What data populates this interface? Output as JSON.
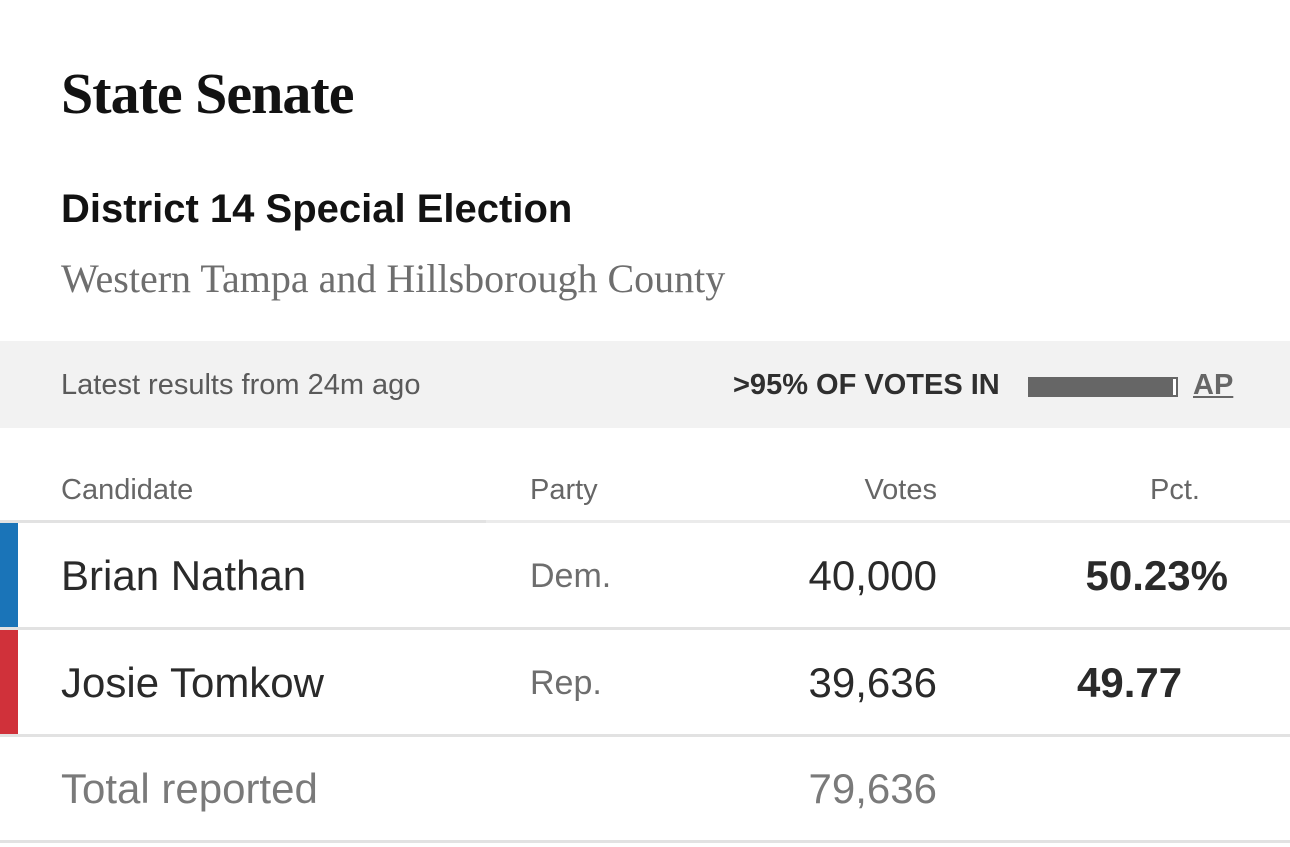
{
  "header": {
    "title": "State Senate",
    "race": "District 14 Special Election",
    "location": "Western Tampa and Hillsborough County"
  },
  "status": {
    "updated": "Latest results from 24m ago",
    "reporting": ">95% OF VOTES IN",
    "reporting_fraction": 0.98,
    "source": "AP"
  },
  "table": {
    "headers": {
      "candidate": "Candidate",
      "party": "Party",
      "votes": "Votes",
      "pct": "Pct."
    },
    "rows": [
      {
        "name": "Brian Nathan",
        "party": "Dem.",
        "votes": "40,000",
        "pct": "50.23%",
        "color": "#1a74b8"
      },
      {
        "name": "Josie Tomkow",
        "party": "Rep.",
        "votes": "39,636",
        "pct": "49.77",
        "color": "#d0313a"
      }
    ],
    "total": {
      "label": "Total reported",
      "votes": "79,636"
    }
  }
}
